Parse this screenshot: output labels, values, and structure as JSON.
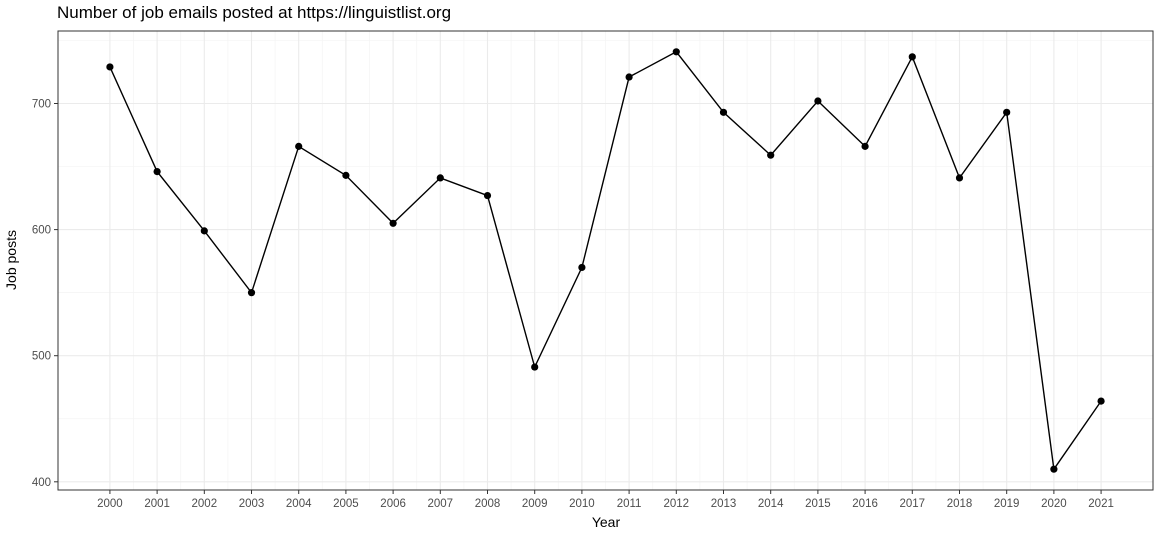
{
  "chart_data": {
    "type": "line",
    "title": "Number of job emails posted at https://linguistlist.org",
    "xlabel": "Year",
    "ylabel": "Job posts",
    "x": [
      2000,
      2001,
      2002,
      2003,
      2004,
      2005,
      2006,
      2007,
      2008,
      2009,
      2010,
      2011,
      2012,
      2013,
      2014,
      2015,
      2016,
      2017,
      2018,
      2019,
      2020,
      2021
    ],
    "y": [
      729,
      646,
      599,
      550,
      666,
      643,
      605,
      641,
      627,
      491,
      570,
      721,
      741,
      693,
      659,
      702,
      666,
      737,
      641,
      693,
      410,
      464
    ],
    "xticks": [
      "2000",
      "2001",
      "2002",
      "2003",
      "2004",
      "2005",
      "2006",
      "2007",
      "2008",
      "2009",
      "2010",
      "2011",
      "2012",
      "2013",
      "2014",
      "2015",
      "2016",
      "2017",
      "2018",
      "2019",
      "2020",
      "2021"
    ],
    "yticks": [
      400,
      500,
      600,
      700
    ],
    "xlim": [
      1998.9,
      2022.1
    ],
    "ylim": [
      393.5,
      757.5
    ],
    "grid": true,
    "legend": "none",
    "line_color": "#000000",
    "point_color": "#000000"
  }
}
